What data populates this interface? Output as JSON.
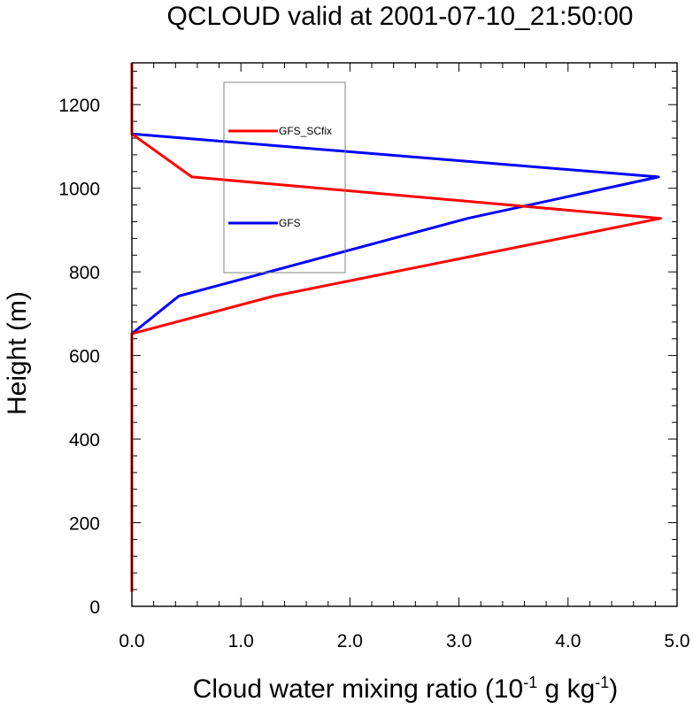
{
  "chart_data": {
    "type": "line",
    "title": "QCLOUD valid at 2001-07-10_21:50:00",
    "xlabel": {
      "prefix": "Cloud water mixing ratio (10",
      "exp1": "-1",
      "mid": " g kg",
      "exp2": "-1",
      "suffix": ")"
    },
    "ylabel": "Height (m)",
    "xlim": [
      0,
      5
    ],
    "ylim": [
      0,
      1300
    ],
    "xticks": [
      0,
      1,
      2,
      3,
      4,
      5
    ],
    "xtick_labels": [
      "0.0",
      "1.0",
      "2.0",
      "3.0",
      "4.0",
      "5.0"
    ],
    "yticks": [
      0,
      200,
      400,
      600,
      800,
      1000,
      1200
    ],
    "ytick_labels": [
      "0",
      "200",
      "400",
      "600",
      "800",
      "1000",
      "1200"
    ],
    "x_minor_step": 0.2,
    "y_minor_step": 40,
    "grid": false,
    "legend_placement": "upper-left inside plot, boxed",
    "series": [
      {
        "name": "GFS_SCfix",
        "color": "#ff0000",
        "x": [
          0,
          0,
          0,
          0,
          0,
          0,
          0,
          0,
          0,
          0,
          0,
          0,
          0,
          0,
          0,
          1.3,
          4.85,
          0.55,
          0,
          0,
          0
        ],
        "y": [
          35,
          60,
          100,
          150,
          200,
          260,
          320,
          380,
          440,
          500,
          560,
          590,
          620,
          640,
          652,
          742,
          928,
          1027,
          1130,
          1200,
          1300
        ]
      },
      {
        "name": "GFS",
        "color": "#0000ff",
        "x": [
          0,
          0,
          0,
          0,
          0,
          0,
          0,
          0,
          0,
          0,
          0,
          0,
          0,
          0,
          0,
          0.43,
          3.08,
          4.83,
          0,
          0,
          0
        ],
        "y": [
          35,
          60,
          100,
          150,
          200,
          260,
          320,
          380,
          440,
          500,
          560,
          590,
          620,
          640,
          652,
          742,
          928,
          1027,
          1130,
          1200,
          1300
        ]
      }
    ]
  }
}
